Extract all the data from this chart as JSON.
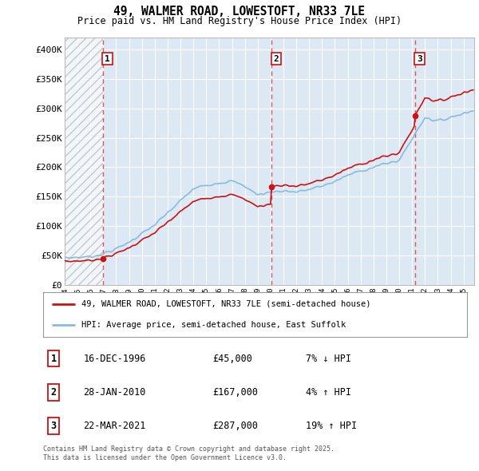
{
  "title_line1": "49, WALMER ROAD, LOWESTOFT, NR33 7LE",
  "title_line2": "Price paid vs. HM Land Registry's House Price Index (HPI)",
  "ylim": [
    0,
    420000
  ],
  "yticks": [
    0,
    50000,
    100000,
    150000,
    200000,
    250000,
    300000,
    350000,
    400000
  ],
  "ytick_labels": [
    "£0",
    "£50K",
    "£100K",
    "£150K",
    "£200K",
    "£250K",
    "£300K",
    "£350K",
    "£400K"
  ],
  "xlim_start": 1994.0,
  "xlim_end": 2025.83,
  "hatch_end": 1996.96,
  "transactions": [
    {
      "year": 1996.96,
      "price": 45000,
      "label": "1"
    },
    {
      "year": 2010.08,
      "price": 167000,
      "label": "2"
    },
    {
      "year": 2021.22,
      "price": 287000,
      "label": "3"
    }
  ],
  "vline_color": "#dd4444",
  "hpi_line_color": "#88bbdd",
  "price_line_color": "#cc1111",
  "dot_color": "#cc1111",
  "legend_entries": [
    "49, WALMER ROAD, LOWESTOFT, NR33 7LE (semi-detached house)",
    "HPI: Average price, semi-detached house, East Suffolk"
  ],
  "table_rows": [
    {
      "num": "1",
      "date": "16-DEC-1996",
      "price": "£45,000",
      "change": "7% ↓ HPI"
    },
    {
      "num": "2",
      "date": "28-JAN-2010",
      "price": "£167,000",
      "change": "4% ↑ HPI"
    },
    {
      "num": "3",
      "date": "22-MAR-2021",
      "price": "£287,000",
      "change": "19% ↑ HPI"
    }
  ],
  "footer": "Contains HM Land Registry data © Crown copyright and database right 2025.\nThis data is licensed under the Open Government Licence v3.0.",
  "bg_color": "#ffffff",
  "plot_bg_color": "#dce9f5",
  "grid_color": "#ffffff"
}
